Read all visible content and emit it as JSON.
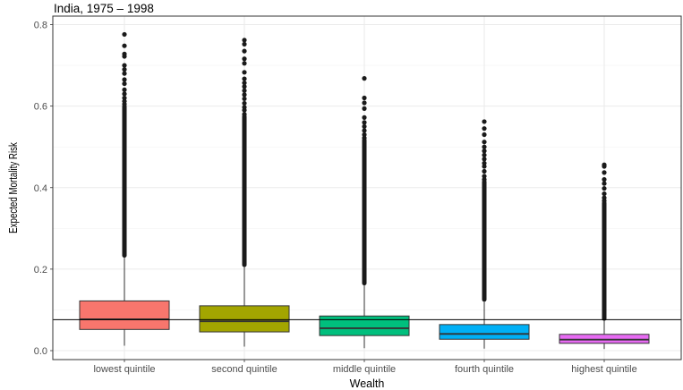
{
  "chart_data": {
    "type": "boxplot",
    "title": "India, 1975 – 1998",
    "xlabel": "Wealth",
    "ylabel": "Expected Mortality Risk",
    "ylim": [
      -0.01,
      0.81
    ],
    "yticks": [
      0.0,
      0.2,
      0.4,
      0.6,
      0.8
    ],
    "ytick_labels": [
      "0.0",
      "0.2",
      "0.4",
      "0.6",
      "0.8"
    ],
    "reference_line": 0.076,
    "categories": [
      "lowest quintile",
      "second quintile",
      "middle quintile",
      "fourth quintile",
      "highest quintile"
    ],
    "boxes": [
      {
        "name": "lowest quintile",
        "color": "#F8766D",
        "whisker_low": 0.012,
        "q1": 0.052,
        "median": 0.077,
        "q3": 0.122,
        "whisker_high": 0.228,
        "outliers": [
          0.776,
          0.748,
          0.728,
          0.722,
          0.7,
          0.69,
          0.68,
          0.665,
          0.655,
          0.64,
          0.63,
          0.62,
          0.612,
          0.605
        ]
      },
      {
        "name": "second quintile",
        "color": "#A3A500",
        "whisker_low": 0.01,
        "q1": 0.046,
        "median": 0.072,
        "q3": 0.11,
        "whisker_high": 0.205,
        "outliers": [
          0.762,
          0.752,
          0.735,
          0.716,
          0.705,
          0.683,
          0.667,
          0.657,
          0.648,
          0.638,
          0.628,
          0.618,
          0.607,
          0.597,
          0.59,
          0.58
        ]
      },
      {
        "name": "middle quintile",
        "color": "#00BF7D",
        "whisker_low": 0.006,
        "q1": 0.037,
        "median": 0.055,
        "q3": 0.085,
        "whisker_high": 0.16,
        "outliers": [
          0.668,
          0.62,
          0.608,
          0.594,
          0.572,
          0.56,
          0.55,
          0.54,
          0.53,
          0.522
        ]
      },
      {
        "name": "fourth quintile",
        "color": "#00B0F6",
        "whisker_low": 0.005,
        "q1": 0.028,
        "median": 0.041,
        "q3": 0.064,
        "whisker_high": 0.12,
        "outliers": [
          0.562,
          0.545,
          0.53,
          0.512,
          0.5,
          0.49,
          0.48,
          0.47,
          0.46,
          0.452,
          0.44,
          0.428,
          0.42
        ]
      },
      {
        "name": "highest quintile",
        "color": "#E76BF3",
        "whisker_low": 0.004,
        "q1": 0.018,
        "median": 0.027,
        "q3": 0.04,
        "whisker_high": 0.073,
        "outliers": [
          0.456,
          0.452,
          0.437,
          0.42,
          0.41,
          0.398,
          0.385,
          0.375,
          0.368
        ]
      }
    ]
  }
}
